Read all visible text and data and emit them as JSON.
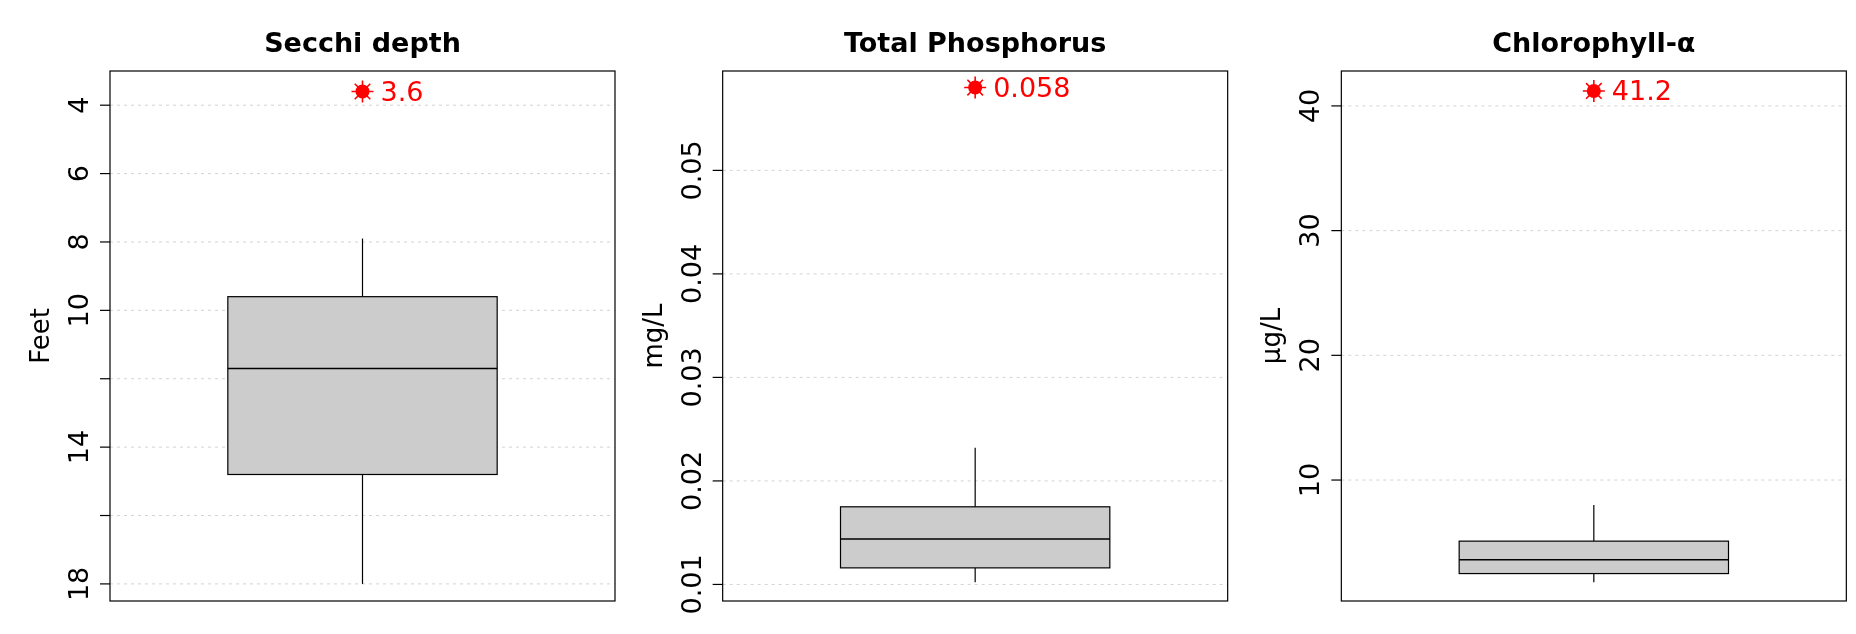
{
  "chart_data": [
    {
      "type": "box",
      "title": "Secchi depth",
      "ylabel": "Feet",
      "categories": [
        null
      ],
      "ylim": [
        18.5,
        3.0
      ],
      "yticks": [
        4,
        6,
        8,
        10,
        {
          "value": 12,
          "label": null
        },
        14,
        {
          "value": 16,
          "label": null
        },
        18
      ],
      "grid": "y",
      "series": [
        {
          "color": "#cccccc",
          "boxes": [
            {
              "low": 7.9,
              "q1": 9.6,
              "median": 11.7,
              "q3": 14.8,
              "high": 18.0
            }
          ]
        },
        {
          "type": "scatter",
          "color": "#ff0000",
          "marker": "circle",
          "values": [
            3.6
          ],
          "value_labels": [
            "3.6"
          ]
        }
      ]
    },
    {
      "type": "box",
      "title": "Total Phosphorus",
      "ylabel": "mg/L",
      "categories": [
        null
      ],
      "ylim": [
        0.0084,
        0.0596
      ],
      "yticks": [
        0.01,
        0.02,
        0.03,
        0.04,
        0.05
      ],
      "grid": "y",
      "series": [
        {
          "color": "#cccccc",
          "boxes": [
            {
              "low": 0.0102,
              "q1": 0.0116,
              "median": 0.0144,
              "q3": 0.0175,
              "high": 0.0232
            }
          ]
        },
        {
          "type": "scatter",
          "color": "#ff0000",
          "marker": "circle",
          "values": [
            0.058
          ],
          "value_labels": [
            "0.058"
          ]
        }
      ]
    },
    {
      "type": "box",
      "title": "Chlorophyll-α",
      "ylabel": "µg/L",
      "categories": [
        null
      ],
      "ylim": [
        0.3,
        42.8
      ],
      "yticks": [
        10,
        20,
        30,
        40
      ],
      "grid": "y",
      "series": [
        {
          "color": "#cccccc",
          "boxes": [
            {
              "low": 1.8,
              "q1": 2.5,
              "median": 3.6,
              "q3": 5.1,
              "high": 8.0
            }
          ]
        },
        {
          "type": "scatter",
          "color": "#ff0000",
          "marker": "circle",
          "values": [
            41.2
          ],
          "value_labels": [
            "41.2"
          ]
        }
      ]
    }
  ]
}
